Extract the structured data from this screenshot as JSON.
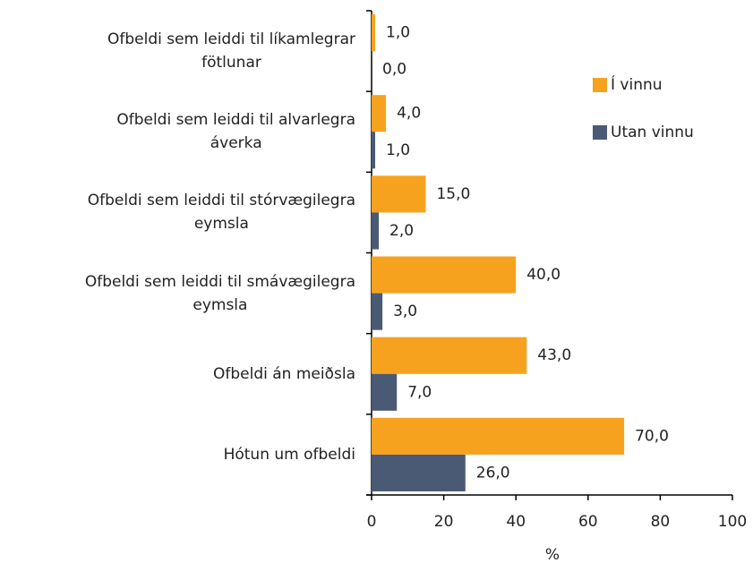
{
  "chart_data": {
    "type": "bar",
    "orientation": "horizontal",
    "categories": [
      "Ofbeldi sem leiddi til líkamlegrar\nfötlunar",
      "Ofbeldi sem leiddi til alvarlegra\náverka",
      "Ofbeldi sem leiddi til stórvægilegra\neymsla",
      "Ofbeldi sem leiddi til smávægilegra\neymsla",
      "Ofbeldi án meiðsla",
      "Hótun um ofbeldi"
    ],
    "series": [
      {
        "name": "Í vinnu",
        "color": "#f7a21e",
        "values": [
          1,
          4,
          15,
          40,
          43,
          70
        ],
        "value_labels": [
          "1,0",
          "4,0",
          "15,0",
          "40,0",
          "43,0",
          "70,0"
        ]
      },
      {
        "name": "Utan vinnu",
        "color": "#4a5a75",
        "values": [
          0,
          1,
          2,
          3,
          7,
          26
        ],
        "value_labels": [
          "0,0",
          "1,0",
          "2,0",
          "3,0",
          "7,0",
          "26,0"
        ]
      }
    ],
    "xlabel": "%",
    "xlim": [
      0,
      100
    ],
    "xticks": [
      0,
      20,
      40,
      60,
      80,
      100
    ],
    "legend": "right"
  }
}
